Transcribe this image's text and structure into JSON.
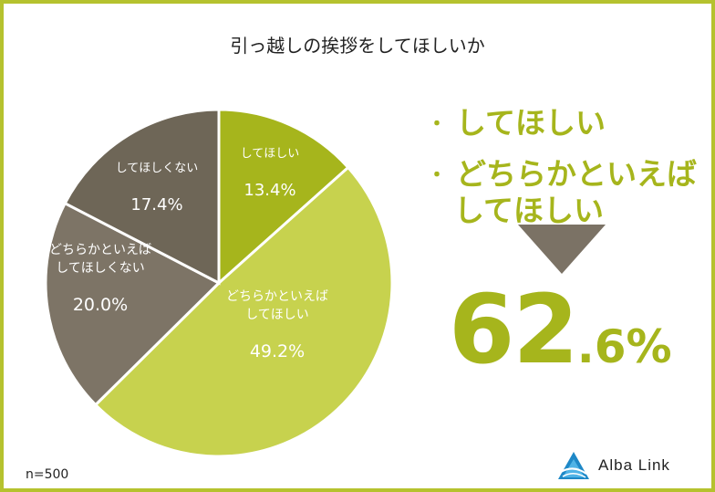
{
  "title": "引っ越しの挨拶をしてほしいか",
  "chart_data": {
    "type": "pie",
    "title": "引っ越しの挨拶をしてほしいか",
    "categories": [
      "してほしい",
      "どちらかといえばしてほしい",
      "どちらかといえばしてほしくない",
      "してほしくない"
    ],
    "values": [
      13.4,
      49.2,
      20.0,
      17.4
    ],
    "slices": [
      {
        "label_lines": [
          "してほしい"
        ],
        "value_text": "13.4%",
        "value": 13.4,
        "color": "#a6b51c"
      },
      {
        "label_lines": [
          "どちらかといえば",
          "してほしい"
        ],
        "value_text": "49.2%",
        "value": 49.2,
        "color": "#c7d24e"
      },
      {
        "label_lines": [
          "どちらかといえば",
          "してほしくない"
        ],
        "value_text": "20.0%",
        "value": 20.0,
        "color": "#7d7466"
      },
      {
        "label_lines": [
          "してほしくない"
        ],
        "value_text": "17.4%",
        "value": 17.4,
        "color": "#6e6657"
      }
    ],
    "sample_size": "n=500"
  },
  "callout": {
    "line1": "してほしい",
    "line2a": "どちらかといえば",
    "line2b": "してほしい",
    "bullet": "・",
    "total_int": "62",
    "total_dec": ".6%"
  },
  "footer": {
    "sample_size": "n=500",
    "logo_text": "Alba Link"
  },
  "colors": {
    "frame": "#b5c22e",
    "accent": "#a6b51c",
    "arrow": "#7b7265"
  }
}
